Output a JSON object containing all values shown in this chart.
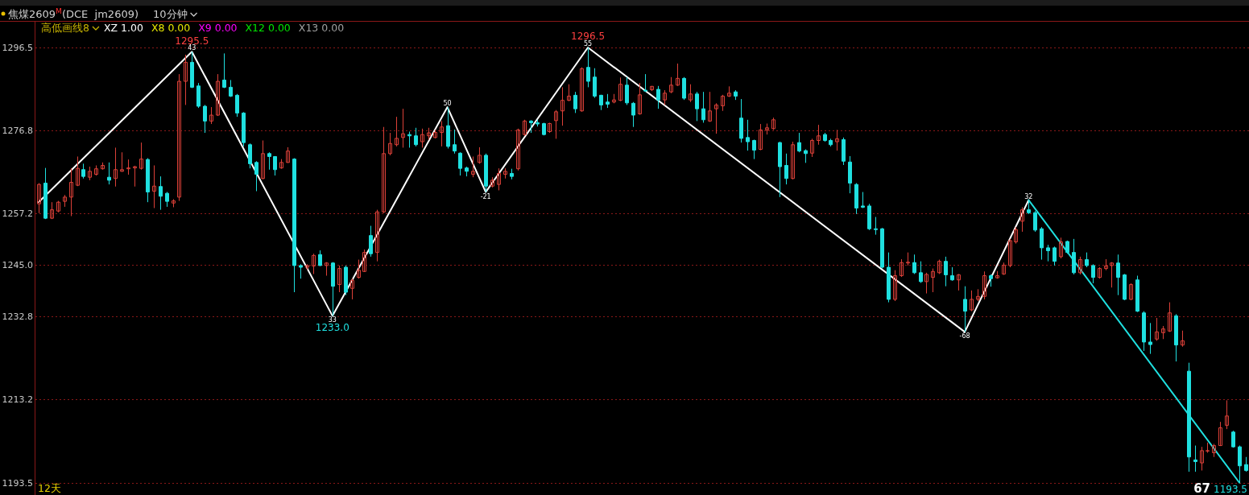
{
  "chart_data": {
    "type": "candlestick",
    "title": "焦煤2609$^{M}$(DCE  jm2609)",
    "subtitle": "10分钟",
    "categories": [
      null,
      null,
      null,
      null,
      null,
      null,
      null,
      null,
      null,
      null,
      null,
      null,
      null,
      null,
      null,
      null,
      null,
      null,
      null,
      null,
      null,
      null,
      null,
      null,
      null,
      null,
      null,
      null,
      null,
      null,
      null,
      null,
      null,
      null,
      null,
      null,
      null,
      null,
      null,
      null,
      null,
      null,
      null,
      null,
      null,
      null,
      null,
      null,
      null,
      null,
      null,
      null,
      null,
      null,
      null,
      null,
      null,
      null,
      null,
      null,
      null,
      null,
      null,
      null,
      null,
      null,
      null,
      null,
      null,
      null,
      null,
      null,
      null,
      null,
      null,
      null,
      null,
      null,
      null,
      null,
      null,
      null,
      null,
      null,
      null,
      null,
      null,
      null,
      null,
      null,
      null,
      null,
      null,
      null,
      null,
      null,
      null,
      null,
      null,
      null,
      null,
      null,
      null,
      null,
      null,
      null,
      null,
      null,
      null,
      null,
      null,
      null,
      null,
      null,
      null,
      null,
      null,
      null,
      null,
      null,
      null,
      null,
      null,
      null,
      null,
      null,
      null,
      null,
      null,
      null,
      null,
      null,
      null,
      null,
      null,
      null,
      null,
      null,
      null,
      null,
      null,
      null,
      null,
      null,
      null,
      null,
      null,
      null,
      null,
      null,
      null,
      null,
      null,
      null,
      null,
      null,
      null,
      null,
      null,
      null,
      null,
      null,
      null,
      null,
      null,
      null,
      null,
      null,
      null,
      null,
      null,
      null,
      null,
      null,
      null,
      null,
      null,
      null,
      null,
      null,
      null,
      null,
      null,
      null,
      null,
      null,
      null,
      null,
      null,
      null
    ],
    "ohlc": [
      [
        1259.5,
        1264.4,
        1257.3,
        1264.1
      ],
      [
        1264.4,
        1268.0,
        1255.9,
        1256.1
      ],
      [
        1256.1,
        1259.9,
        1255.9,
        1258.1
      ],
      [
        1257.8,
        1260.2,
        1257.5,
        1259.9
      ],
      [
        1260.1,
        1261.6,
        1258.8,
        1261.1
      ],
      [
        1261.1,
        1267.9,
        1256.6,
        1264.6
      ],
      [
        1263.9,
        1270.7,
        1263.7,
        1267.9
      ],
      [
        1267.6,
        1269.0,
        1265.5,
        1266.0
      ],
      [
        1265.8,
        1268.3,
        1265.1,
        1267.2
      ],
      [
        1266.5,
        1268.6,
        1266.2,
        1267.8
      ],
      [
        1267.8,
        1269.3,
        1267.6,
        1268.6
      ],
      [
        1265.8,
        1269.3,
        1264.1,
        1265.1
      ],
      [
        1265.5,
        1272.8,
        1263.6,
        1267.6
      ],
      [
        1267.2,
        1271.7,
        1267.1,
        1267.6
      ],
      [
        1267.8,
        1270.0,
        1266.4,
        1268.0
      ],
      [
        1268.0,
        1268.5,
        1263.6,
        1268.3
      ],
      [
        1267.9,
        1274.0,
        1267.6,
        1270.1
      ],
      [
        1270.0,
        1270.3,
        1259.9,
        1262.3
      ],
      [
        1262.5,
        1268.6,
        1258.5,
        1263.7
      ],
      [
        1263.6,
        1266.0,
        1258.1,
        1261.3
      ],
      [
        1262.0,
        1262.3,
        1258.8,
        1260.1
      ],
      [
        1259.7,
        1260.6,
        1258.7,
        1260.2
      ],
      [
        1261.1,
        1290.2,
        1260.2,
        1288.5
      ],
      [
        1288.5,
        1294.8,
        1282.9,
        1293.0
      ],
      [
        1293.0,
        1295.5,
        1286.9,
        1287.1
      ],
      [
        1287.4,
        1288.1,
        1282.2,
        1282.6
      ],
      [
        1282.6,
        1282.9,
        1276.3,
        1279.1
      ],
      [
        1279.1,
        1282.4,
        1278.4,
        1280.5
      ],
      [
        1280.5,
        1290.2,
        1280.3,
        1288.5
      ],
      [
        1288.8,
        1295.1,
        1286.9,
        1287.1
      ],
      [
        1287.1,
        1288.8,
        1284.8,
        1285.0
      ],
      [
        1285.2,
        1285.5,
        1280.1,
        1281.0
      ],
      [
        1281.0,
        1281.2,
        1273.1,
        1274.0
      ],
      [
        1273.5,
        1273.8,
        1267.9,
        1269.0
      ],
      [
        1269.3,
        1269.6,
        1262.5,
        1266.5
      ],
      [
        1265.5,
        1274.5,
        1265.3,
        1271.4
      ],
      [
        1271.4,
        1271.7,
        1267.6,
        1270.7
      ],
      [
        1270.7,
        1270.8,
        1266.2,
        1267.6
      ],
      [
        1268.0,
        1270.1,
        1267.8,
        1269.3
      ],
      [
        1269.3,
        1272.9,
        1269.2,
        1272.0
      ],
      [
        1270.1,
        1270.3,
        1238.6,
        1244.9
      ],
      [
        1244.9,
        1245.2,
        1241.8,
        1244.5
      ],
      [
        1244.5,
        1245.2,
        1243.9,
        1244.9
      ],
      [
        1244.8,
        1247.7,
        1242.9,
        1247.3
      ],
      [
        1247.5,
        1248.5,
        1244.8,
        1244.9
      ],
      [
        1244.9,
        1245.7,
        1242.5,
        1245.5
      ],
      [
        1245.5,
        1245.7,
        1233.0,
        1240.0
      ],
      [
        1240.4,
        1244.9,
        1238.6,
        1244.2
      ],
      [
        1244.5,
        1244.9,
        1237.9,
        1238.6
      ],
      [
        1239.5,
        1241.8,
        1236.9,
        1241.4
      ],
      [
        1242.1,
        1246.3,
        1241.8,
        1243.8
      ],
      [
        1243.5,
        1248.7,
        1243.4,
        1248.0
      ],
      [
        1252.0,
        1254.3,
        1247.0,
        1247.7
      ],
      [
        1248.0,
        1258.1,
        1245.9,
        1257.6
      ],
      [
        1257.6,
        1277.7,
        1257.3,
        1271.4
      ],
      [
        1271.4,
        1276.3,
        1271.0,
        1273.8
      ],
      [
        1273.5,
        1280.1,
        1273.1,
        1275.0
      ],
      [
        1275.2,
        1282.0,
        1272.8,
        1276.1
      ],
      [
        1275.9,
        1276.6,
        1272.8,
        1275.6
      ],
      [
        1275.6,
        1277.5,
        1273.1,
        1273.5
      ],
      [
        1274.2,
        1277.3,
        1272.8,
        1275.9
      ],
      [
        1275.6,
        1277.5,
        1274.7,
        1276.3
      ],
      [
        1275.2,
        1277.0,
        1275.0,
        1276.4
      ],
      [
        1276.4,
        1279.1,
        1273.1,
        1277.7
      ],
      [
        1278.0,
        1282.4,
        1272.6,
        1273.1
      ],
      [
        1273.5,
        1277.1,
        1271.4,
        1272.0
      ],
      [
        1271.5,
        1271.7,
        1266.2,
        1267.9
      ],
      [
        1268.0,
        1268.3,
        1266.0,
        1267.2
      ],
      [
        1266.5,
        1270.7,
        1265.8,
        1267.2
      ],
      [
        1269.3,
        1272.9,
        1269.0,
        1271.0
      ],
      [
        1271.0,
        1271.4,
        1262.3,
        1263.7
      ],
      [
        1263.7,
        1265.8,
        1263.4,
        1265.1
      ],
      [
        1264.1,
        1267.9,
        1262.7,
        1266.7
      ],
      [
        1266.5,
        1267.9,
        1265.5,
        1267.2
      ],
      [
        1266.7,
        1267.8,
        1265.3,
        1266.0
      ],
      [
        1267.8,
        1277.3,
        1267.4,
        1277.0
      ],
      [
        1275.9,
        1279.4,
        1275.6,
        1279.1
      ],
      [
        1279.1,
        1279.3,
        1276.3,
        1278.7
      ],
      [
        1278.7,
        1279.4,
        1277.8,
        1278.4
      ],
      [
        1278.5,
        1278.7,
        1275.7,
        1275.9
      ],
      [
        1276.6,
        1278.7,
        1276.3,
        1278.5
      ],
      [
        1279.2,
        1281.7,
        1274.9,
        1281.3
      ],
      [
        1281.5,
        1287.1,
        1278.0,
        1284.0
      ],
      [
        1284.0,
        1287.8,
        1283.8,
        1285.0
      ],
      [
        1285.2,
        1286.0,
        1281.0,
        1282.0
      ],
      [
        1281.5,
        1291.8,
        1281.3,
        1291.5
      ],
      [
        1291.8,
        1296.5,
        1287.1,
        1288.5
      ],
      [
        1289.5,
        1291.6,
        1284.6,
        1285.0
      ],
      [
        1285.2,
        1285.3,
        1281.7,
        1282.9
      ],
      [
        1283.6,
        1285.5,
        1282.2,
        1283.1
      ],
      [
        1283.6,
        1285.5,
        1283.3,
        1284.1
      ],
      [
        1284.0,
        1289.4,
        1283.8,
        1287.8
      ],
      [
        1287.6,
        1289.5,
        1282.9,
        1283.4
      ],
      [
        1283.3,
        1283.6,
        1277.7,
        1280.5
      ],
      [
        1280.8,
        1288.1,
        1280.6,
        1285.3
      ],
      [
        1286.4,
        1290.2,
        1286.0,
        1286.2
      ],
      [
        1286.5,
        1287.4,
        1286.2,
        1287.3
      ],
      [
        1286.6,
        1287.4,
        1282.0,
        1284.1
      ],
      [
        1284.1,
        1286.4,
        1282.9,
        1285.7
      ],
      [
        1286.0,
        1289.5,
        1285.7,
        1287.6
      ],
      [
        1287.6,
        1292.7,
        1287.4,
        1289.2
      ],
      [
        1289.2,
        1289.5,
        1284.1,
        1284.5
      ],
      [
        1284.1,
        1287.8,
        1283.6,
        1285.5
      ],
      [
        1285.5,
        1286.0,
        1279.1,
        1282.0
      ],
      [
        1282.0,
        1286.0,
        1278.7,
        1279.4
      ],
      [
        1279.1,
        1286.0,
        1278.9,
        1281.5
      ],
      [
        1282.0,
        1283.3,
        1276.1,
        1282.9
      ],
      [
        1282.7,
        1285.3,
        1281.5,
        1285.0
      ],
      [
        1285.0,
        1287.3,
        1284.8,
        1285.7
      ],
      [
        1286.0,
        1286.4,
        1284.1,
        1285.0
      ],
      [
        1279.8,
        1284.3,
        1274.0,
        1275.0
      ],
      [
        1275.2,
        1279.4,
        1272.1,
        1274.2
      ],
      [
        1274.5,
        1274.7,
        1270.1,
        1272.2
      ],
      [
        1272.4,
        1278.4,
        1272.2,
        1277.0
      ],
      [
        1277.0,
        1278.5,
        1275.9,
        1277.5
      ],
      [
        1277.3,
        1279.9,
        1277.0,
        1279.4
      ],
      [
        1274.0,
        1274.2,
        1261.1,
        1268.3
      ],
      [
        1268.6,
        1271.4,
        1264.1,
        1265.5
      ],
      [
        1265.5,
        1274.2,
        1265.3,
        1273.5
      ],
      [
        1274.0,
        1276.3,
        1271.7,
        1272.0
      ],
      [
        1272.1,
        1272.4,
        1269.2,
        1271.4
      ],
      [
        1271.5,
        1274.9,
        1270.6,
        1274.5
      ],
      [
        1274.5,
        1278.2,
        1273.5,
        1275.6
      ],
      [
        1275.9,
        1276.3,
        1274.2,
        1274.5
      ],
      [
        1274.5,
        1274.9,
        1273.1,
        1273.5
      ],
      [
        1274.2,
        1277.0,
        1272.1,
        1274.9
      ],
      [
        1274.7,
        1275.2,
        1268.7,
        1269.6
      ],
      [
        1269.4,
        1270.8,
        1262.0,
        1264.4
      ],
      [
        1264.1,
        1264.4,
        1257.1,
        1258.5
      ],
      [
        1259.0,
        1262.3,
        1258.5,
        1258.7
      ],
      [
        1259.0,
        1259.5,
        1253.3,
        1253.6
      ],
      [
        1253.6,
        1256.4,
        1252.2,
        1253.4
      ],
      [
        1253.6,
        1253.8,
        1244.2,
        1244.5
      ],
      [
        1244.5,
        1248.0,
        1236.2,
        1236.9
      ],
      [
        1236.9,
        1243.8,
        1236.5,
        1242.5
      ],
      [
        1242.5,
        1246.4,
        1242.2,
        1245.6
      ],
      [
        1245.5,
        1248.0,
        1244.9,
        1245.7
      ],
      [
        1245.6,
        1247.5,
        1242.9,
        1243.2
      ],
      [
        1243.2,
        1245.9,
        1240.8,
        1241.1
      ],
      [
        1241.1,
        1243.2,
        1238.3,
        1242.8
      ],
      [
        1242.1,
        1244.2,
        1238.6,
        1243.5
      ],
      [
        1243.2,
        1246.3,
        1242.9,
        1245.9
      ],
      [
        1245.9,
        1247.0,
        1240.0,
        1242.7
      ],
      [
        1242.5,
        1244.5,
        1241.3,
        1241.5
      ],
      [
        1241.5,
        1242.9,
        1239.0,
        1242.7
      ],
      [
        1236.9,
        1240.0,
        1229.2,
        1234.1
      ],
      [
        1234.4,
        1239.0,
        1234.1,
        1236.9
      ],
      [
        1236.9,
        1239.3,
        1236.5,
        1237.6
      ],
      [
        1237.6,
        1243.5,
        1236.9,
        1242.5
      ],
      [
        1242.5,
        1242.8,
        1239.9,
        1241.8
      ],
      [
        1242.0,
        1243.6,
        1241.8,
        1242.5
      ],
      [
        1242.9,
        1245.6,
        1242.7,
        1245.0
      ],
      [
        1244.9,
        1251.2,
        1244.5,
        1250.8
      ],
      [
        1250.5,
        1254.0,
        1250.1,
        1253.4
      ],
      [
        1255.4,
        1258.7,
        1252.9,
        1258.1
      ],
      [
        1258.1,
        1260.4,
        1257.1,
        1257.4
      ],
      [
        1257.4,
        1257.8,
        1252.9,
        1253.3
      ],
      [
        1253.6,
        1254.0,
        1246.3,
        1249.1
      ],
      [
        1249.1,
        1249.8,
        1245.9,
        1248.4
      ],
      [
        1249.1,
        1249.4,
        1244.9,
        1245.9
      ],
      [
        1247.0,
        1251.5,
        1246.6,
        1250.5
      ],
      [
        1250.6,
        1250.8,
        1247.7,
        1248.0
      ],
      [
        1248.0,
        1251.2,
        1242.8,
        1243.2
      ],
      [
        1243.2,
        1247.0,
        1242.8,
        1246.3
      ],
      [
        1246.3,
        1248.0,
        1244.5,
        1244.9
      ],
      [
        1244.9,
        1245.2,
        1240.7,
        1242.1
      ],
      [
        1242.1,
        1244.5,
        1241.8,
        1244.2
      ],
      [
        1244.2,
        1246.4,
        1243.8,
        1244.8
      ],
      [
        1244.9,
        1245.7,
        1239.7,
        1245.5
      ],
      [
        1245.5,
        1247.5,
        1237.9,
        1242.1
      ],
      [
        1242.7,
        1242.9,
        1236.7,
        1236.9
      ],
      [
        1236.9,
        1240.7,
        1236.7,
        1240.4
      ],
      [
        1241.5,
        1242.5,
        1233.9,
        1234.1
      ],
      [
        1233.7,
        1234.1,
        1224.7,
        1226.8
      ],
      [
        1226.8,
        1231.3,
        1224.0,
        1226.2
      ],
      [
        1227.5,
        1232.5,
        1227.1,
        1229.2
      ],
      [
        1229.0,
        1230.6,
        1227.5,
        1229.9
      ],
      [
        1229.4,
        1236.2,
        1229.2,
        1233.7
      ],
      [
        1233.0,
        1233.4,
        1222.2,
        1226.1
      ],
      [
        1226.1,
        1229.5,
        1225.7,
        1227.1
      ],
      [
        1219.9,
        1221.9,
        1196.1,
        1199.6
      ],
      [
        1198.9,
        1202.3,
        1196.1,
        1198.5
      ],
      [
        1198.2,
        1202.0,
        1196.4,
        1201.1
      ],
      [
        1201.0,
        1203.0,
        1200.6,
        1201.1
      ],
      [
        1200.6,
        1202.7,
        1199.6,
        1202.3
      ],
      [
        1202.3,
        1207.9,
        1202.2,
        1206.5
      ],
      [
        1207.1,
        1213.0,
        1206.2,
        1209.3
      ],
      [
        1205.5,
        1205.8,
        1201.8,
        1202.0
      ],
      [
        1202.0,
        1202.3,
        1193.5,
        1197.5
      ],
      [
        1197.8,
        1199.6,
        1196.1,
        1196.4
      ]
    ],
    "series": [
      {
        "type": "line",
        "color": "#ffffff",
        "values": [
          1259.9,
          null,
          null,
          null,
          null,
          null,
          null,
          null,
          null,
          null,
          null,
          null,
          null,
          null,
          null,
          null,
          null,
          null,
          null,
          null,
          null,
          null,
          null,
          null,
          1295.5,
          null,
          null,
          null,
          null,
          null,
          null,
          null,
          null,
          null,
          null,
          null,
          null,
          null,
          null,
          null,
          null,
          null,
          null,
          null,
          null,
          null,
          1233.0,
          null,
          null,
          null,
          null,
          null,
          null,
          null,
          null,
          null,
          null,
          null,
          null,
          null,
          null,
          null,
          null,
          null,
          1282.4,
          null,
          null,
          null,
          null,
          null,
          1262.3,
          null,
          null,
          null,
          null,
          null,
          null,
          null,
          null,
          null,
          null,
          null,
          null,
          null,
          null,
          null,
          1296.5,
          null,
          null,
          null,
          null,
          null,
          null,
          null,
          null,
          null,
          null,
          null,
          null,
          null,
          null,
          null,
          null,
          null,
          null,
          null,
          null,
          null,
          null,
          null,
          null,
          null,
          null,
          null,
          null,
          null,
          null,
          null,
          null,
          null,
          null,
          null,
          null,
          null,
          null,
          null,
          null,
          null,
          null,
          null,
          null,
          null,
          null,
          null,
          null,
          null,
          null,
          null,
          null,
          null,
          null,
          null,
          null,
          null,
          null,
          1229.2,
          null,
          null,
          null,
          null,
          null,
          null,
          null,
          null,
          null,
          1260.4,
          null,
          null,
          null,
          null,
          null,
          null,
          null,
          null,
          null,
          null,
          null,
          null,
          null,
          null,
          null,
          null,
          null,
          null,
          null,
          null,
          null,
          null,
          null,
          null,
          null,
          null,
          null,
          null,
          null,
          null,
          null,
          null,
          null,
          null
        ]
      },
      {
        "type": "line",
        "color": "#1fe0e0",
        "values": [
          null,
          null,
          null,
          null,
          null,
          null,
          null,
          null,
          null,
          null,
          null,
          null,
          null,
          null,
          null,
          null,
          null,
          null,
          null,
          null,
          null,
          null,
          null,
          null,
          null,
          null,
          null,
          null,
          null,
          null,
          null,
          null,
          null,
          null,
          null,
          null,
          null,
          null,
          null,
          null,
          null,
          null,
          null,
          null,
          null,
          null,
          null,
          null,
          null,
          null,
          null,
          null,
          null,
          null,
          null,
          null,
          null,
          null,
          null,
          null,
          null,
          null,
          null,
          null,
          null,
          null,
          null,
          null,
          null,
          null,
          null,
          null,
          null,
          null,
          null,
          null,
          null,
          null,
          null,
          null,
          null,
          null,
          null,
          null,
          null,
          null,
          null,
          null,
          null,
          null,
          null,
          null,
          null,
          null,
          null,
          null,
          null,
          null,
          null,
          null,
          null,
          null,
          null,
          null,
          null,
          null,
          null,
          null,
          null,
          null,
          null,
          null,
          null,
          null,
          null,
          null,
          null,
          null,
          null,
          null,
          null,
          null,
          null,
          null,
          null,
          null,
          null,
          null,
          null,
          null,
          null,
          null,
          null,
          null,
          null,
          null,
          null,
          null,
          null,
          null,
          null,
          null,
          null,
          null,
          null,
          null,
          null,
          null,
          null,
          null,
          null,
          null,
          null,
          null,
          null,
          1260.4,
          null,
          null,
          null,
          null,
          null,
          null,
          null,
          null,
          null,
          null,
          null,
          null,
          null,
          null,
          null,
          null,
          null,
          null,
          null,
          null,
          null,
          null,
          null,
          null,
          null,
          null,
          null,
          null,
          null,
          null,
          null,
          null,
          1193.5,
          null
        ]
      }
    ],
    "ylim": [
      1190.6,
      1302.6
    ],
    "yticks": [
      1193.5,
      1213.2,
      1232.8,
      {
        "value": 1245.0,
        "label": "1245.0"
      },
      1257.2,
      1276.8,
      1296.5
    ],
    "grid": "y",
    "tick_labels": "y",
    "annotations": [
      "高低画线8",
      "XZ 1.00",
      "X8 0.00",
      "X9 0.00",
      "X12 0.00",
      "X13 0.00",
      "12天",
      "67",
      "1193.5",
      {
        "text": "43",
        "y": 1295.5
      },
      {
        "text": "1295.5",
        "y": 1295.5
      },
      {
        "text": "33",
        "y": 1233.0
      },
      {
        "text": "1233.0",
        "y": 1233.0
      },
      {
        "text": "50",
        "y": 1282.4
      },
      {
        "text": "-21",
        "y": 1262.3
      },
      {
        "text": "55",
        "y": 1296.5
      },
      {
        "text": "1296.5",
        "y": 1296.5
      },
      {
        "text": "-68",
        "y": 1229.2
      },
      {
        "text": "32",
        "y": 1260.4
      }
    ]
  }
}
